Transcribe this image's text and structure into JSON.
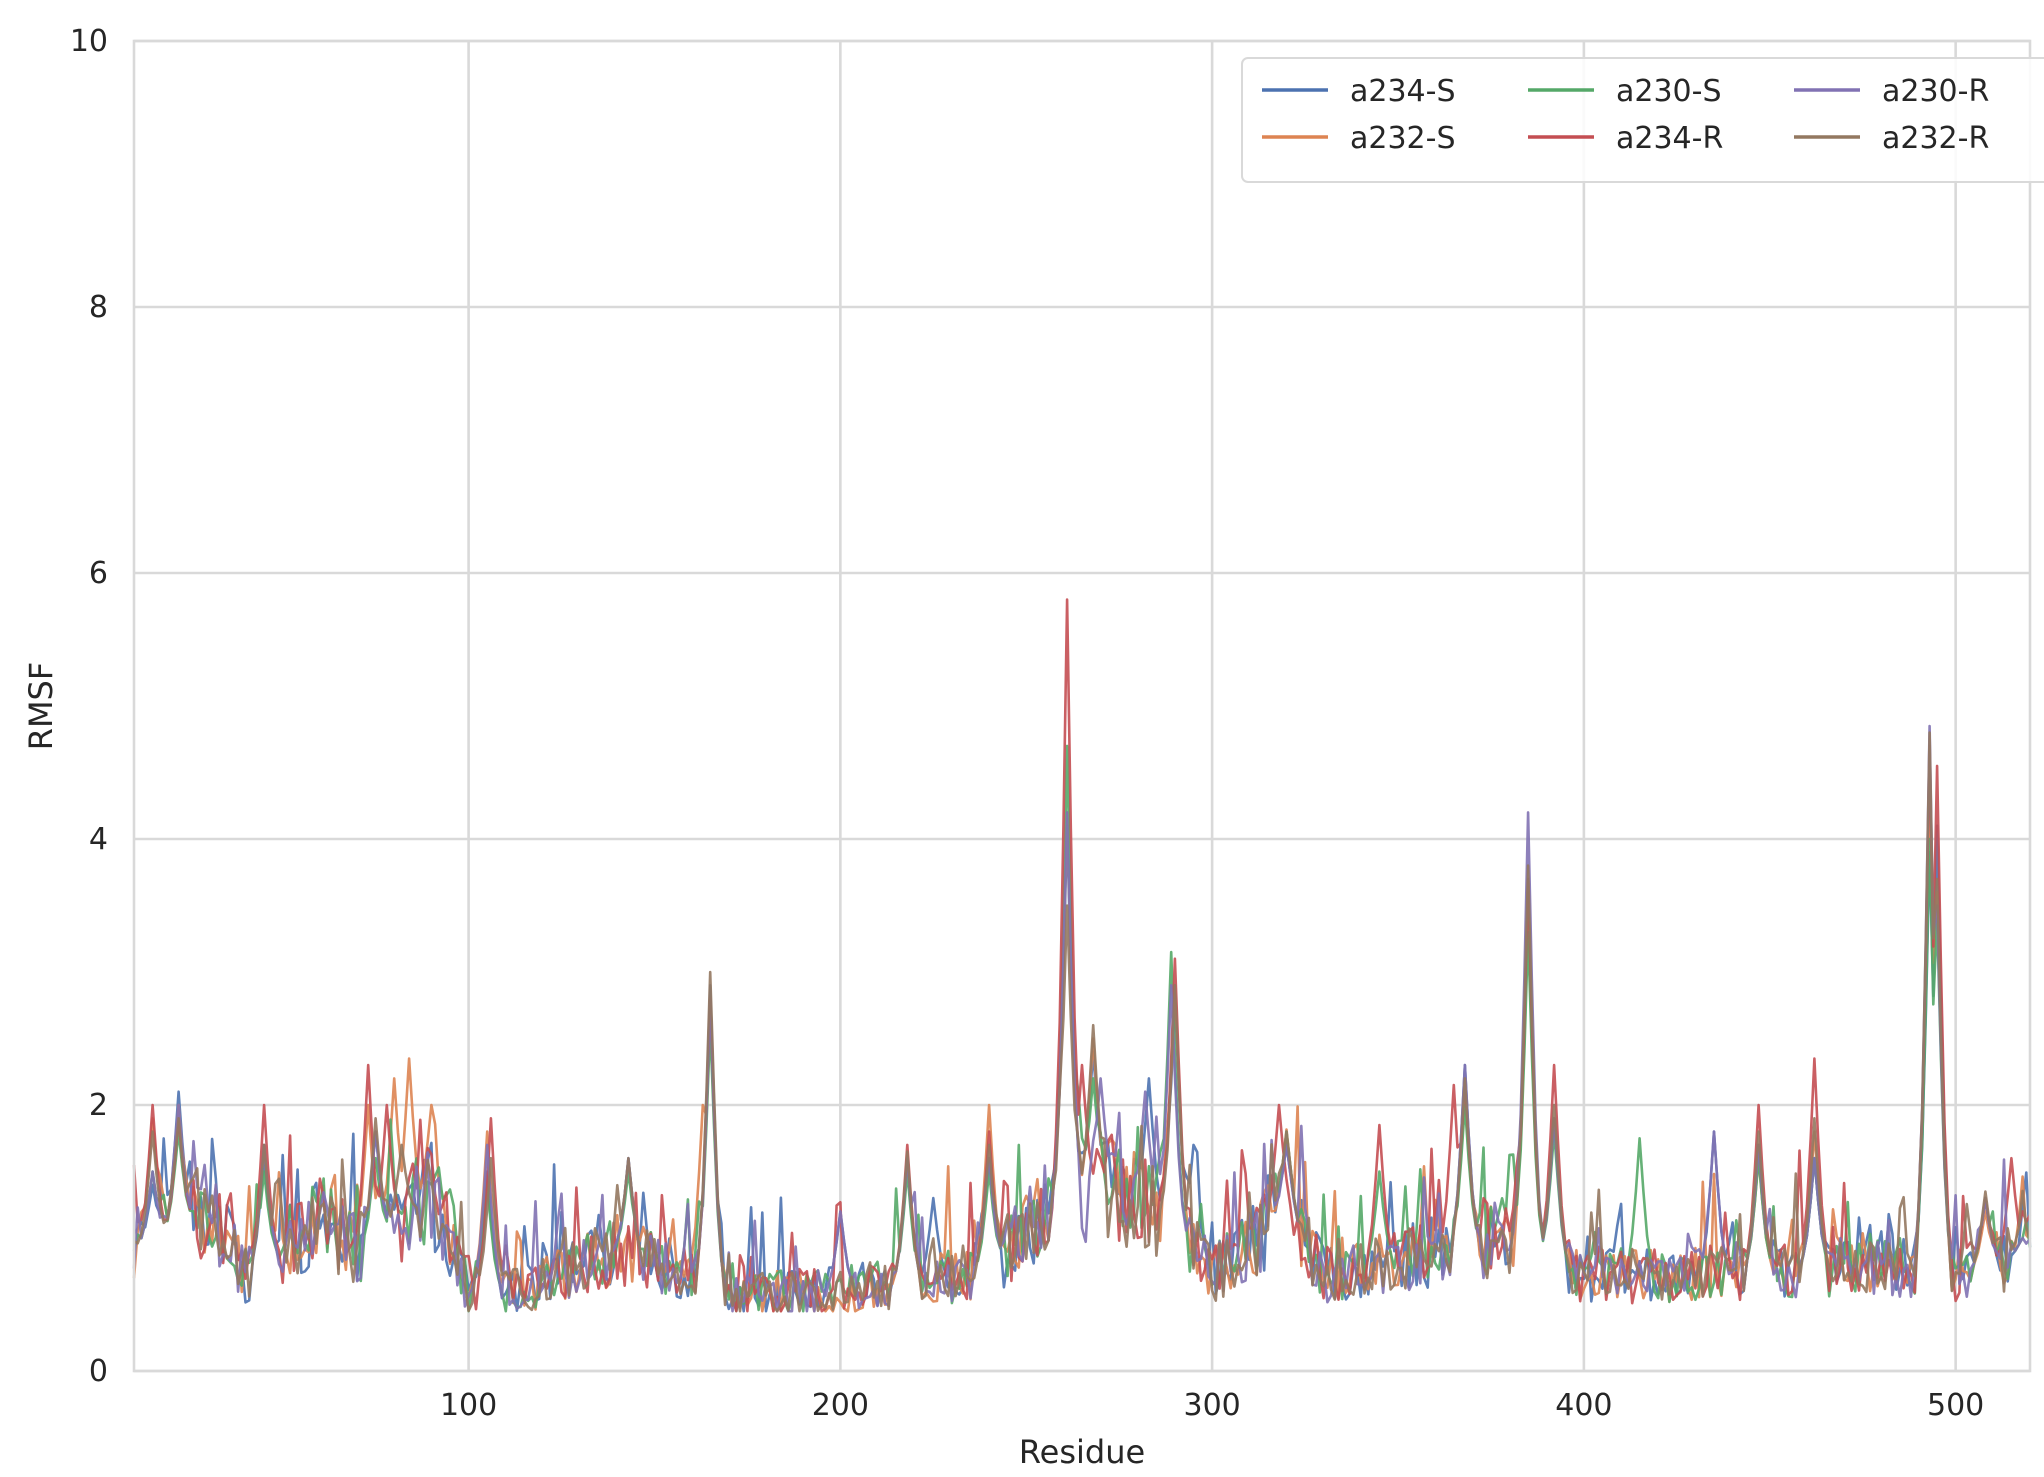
{
  "chart_data": {
    "type": "line",
    "title": "",
    "xlabel": "Residue",
    "ylabel": "RMSF",
    "xlim": [
      10,
      520
    ],
    "ylim": [
      0,
      10
    ],
    "xticks": [
      100,
      200,
      300,
      400,
      500
    ],
    "yticks": [
      0,
      2,
      4,
      6,
      8,
      10
    ],
    "grid": true,
    "legend": {
      "position": "top-right",
      "columns": 3
    },
    "series": [
      {
        "name": "a234-S",
        "color": "#4c72b0",
        "peaks": [
          [
            15,
            1.4
          ],
          [
            22,
            2.1
          ],
          [
            45,
            1.6
          ],
          [
            75,
            1.8
          ],
          [
            105,
            1.5
          ],
          [
            143,
            1.6
          ],
          [
            165,
            2.9
          ],
          [
            200,
            1.2
          ],
          [
            218,
            1.6
          ],
          [
            225,
            1.3
          ],
          [
            240,
            1.6
          ],
          [
            261,
            4.1
          ],
          [
            268,
            2.4
          ],
          [
            283,
            2.2
          ],
          [
            290,
            2.8
          ],
          [
            295,
            1.7
          ],
          [
            320,
            1.7
          ],
          [
            368,
            2.3
          ],
          [
            385,
            3.6
          ],
          [
            392,
            1.9
          ],
          [
            435,
            1.8
          ],
          [
            447,
            1.7
          ],
          [
            462,
            1.6
          ],
          [
            493,
            3.9
          ],
          [
            495,
            4.1
          ],
          [
            508,
            1.3
          ],
          [
            518,
            1.0
          ]
        ]
      },
      {
        "name": "a232-S",
        "color": "#dd8452",
        "peaks": [
          [
            15,
            1.9
          ],
          [
            22,
            2.0
          ],
          [
            45,
            1.7
          ],
          [
            73,
            2.0
          ],
          [
            80,
            2.2
          ],
          [
            84,
            2.35
          ],
          [
            90,
            2.0
          ],
          [
            105,
            1.8
          ],
          [
            163,
            2.0
          ],
          [
            165,
            2.7
          ],
          [
            218,
            1.6
          ],
          [
            240,
            2.0
          ],
          [
            261,
            4.2
          ],
          [
            268,
            2.5
          ],
          [
            290,
            2.9
          ],
          [
            320,
            1.8
          ],
          [
            368,
            2.1
          ],
          [
            385,
            3.5
          ],
          [
            392,
            1.9
          ],
          [
            447,
            1.6
          ],
          [
            462,
            1.8
          ],
          [
            493,
            4.5
          ],
          [
            495,
            3.6
          ],
          [
            508,
            1.2
          ],
          [
            518,
            1.1
          ]
        ]
      },
      {
        "name": "a230-S",
        "color": "#55a868",
        "peaks": [
          [
            15,
            1.5
          ],
          [
            22,
            1.8
          ],
          [
            45,
            1.5
          ],
          [
            75,
            1.6
          ],
          [
            105,
            1.4
          ],
          [
            143,
            1.5
          ],
          [
            165,
            2.6
          ],
          [
            218,
            1.5
          ],
          [
            240,
            1.5
          ],
          [
            261,
            4.7
          ],
          [
            268,
            2.2
          ],
          [
            289,
            3.15
          ],
          [
            320,
            1.8
          ],
          [
            345,
            1.5
          ],
          [
            368,
            2.0
          ],
          [
            385,
            3.3
          ],
          [
            392,
            1.8
          ],
          [
            415,
            1.75
          ],
          [
            447,
            1.6
          ],
          [
            462,
            1.6
          ],
          [
            493,
            4.0
          ],
          [
            495,
            3.4
          ],
          [
            508,
            1.3
          ],
          [
            518,
            1.0
          ]
        ]
      },
      {
        "name": "a234-R",
        "color": "#c44e52",
        "peaks": [
          [
            15,
            2.0
          ],
          [
            22,
            1.9
          ],
          [
            45,
            2.0
          ],
          [
            73,
            2.3
          ],
          [
            78,
            2.0
          ],
          [
            106,
            1.9
          ],
          [
            165,
            2.8
          ],
          [
            218,
            1.7
          ],
          [
            240,
            1.8
          ],
          [
            261,
            5.8
          ],
          [
            265,
            2.3
          ],
          [
            290,
            3.1
          ],
          [
            318,
            2.0
          ],
          [
            345,
            1.85
          ],
          [
            365,
            2.15
          ],
          [
            368,
            2.2
          ],
          [
            385,
            3.7
          ],
          [
            392,
            2.3
          ],
          [
            447,
            2.0
          ],
          [
            462,
            2.35
          ],
          [
            493,
            4.7
          ],
          [
            495,
            4.55
          ],
          [
            508,
            1.3
          ],
          [
            515,
            1.6
          ],
          [
            518,
            1.2
          ]
        ]
      },
      {
        "name": "a230-R",
        "color": "#8172b3",
        "peaks": [
          [
            15,
            1.5
          ],
          [
            22,
            2.0
          ],
          [
            45,
            1.7
          ],
          [
            75,
            1.8
          ],
          [
            105,
            1.7
          ],
          [
            143,
            1.6
          ],
          [
            165,
            2.8
          ],
          [
            200,
            1.2
          ],
          [
            218,
            1.6
          ],
          [
            240,
            1.6
          ],
          [
            261,
            4.2
          ],
          [
            270,
            2.2
          ],
          [
            282,
            2.1
          ],
          [
            289,
            2.9
          ],
          [
            320,
            1.7
          ],
          [
            368,
            2.3
          ],
          [
            385,
            4.2
          ],
          [
            392,
            1.9
          ],
          [
            435,
            1.8
          ],
          [
            447,
            1.7
          ],
          [
            462,
            1.6
          ],
          [
            493,
            4.85
          ],
          [
            495,
            3.5
          ],
          [
            508,
            1.3
          ],
          [
            518,
            1.0
          ]
        ]
      },
      {
        "name": "a232-R",
        "color": "#937860",
        "peaks": [
          [
            15,
            1.8
          ],
          [
            22,
            1.9
          ],
          [
            45,
            1.7
          ],
          [
            75,
            1.9
          ],
          [
            82,
            1.7
          ],
          [
            106,
            1.6
          ],
          [
            143,
            1.6
          ],
          [
            165,
            3.0
          ],
          [
            218,
            1.65
          ],
          [
            240,
            1.7
          ],
          [
            261,
            3.5
          ],
          [
            268,
            2.6
          ],
          [
            290,
            2.9
          ],
          [
            320,
            1.8
          ],
          [
            368,
            2.2
          ],
          [
            385,
            3.8
          ],
          [
            392,
            2.0
          ],
          [
            447,
            1.8
          ],
          [
            462,
            1.9
          ],
          [
            493,
            4.8
          ],
          [
            495,
            3.7
          ],
          [
            508,
            1.35
          ],
          [
            518,
            1.2
          ]
        ]
      }
    ]
  }
}
